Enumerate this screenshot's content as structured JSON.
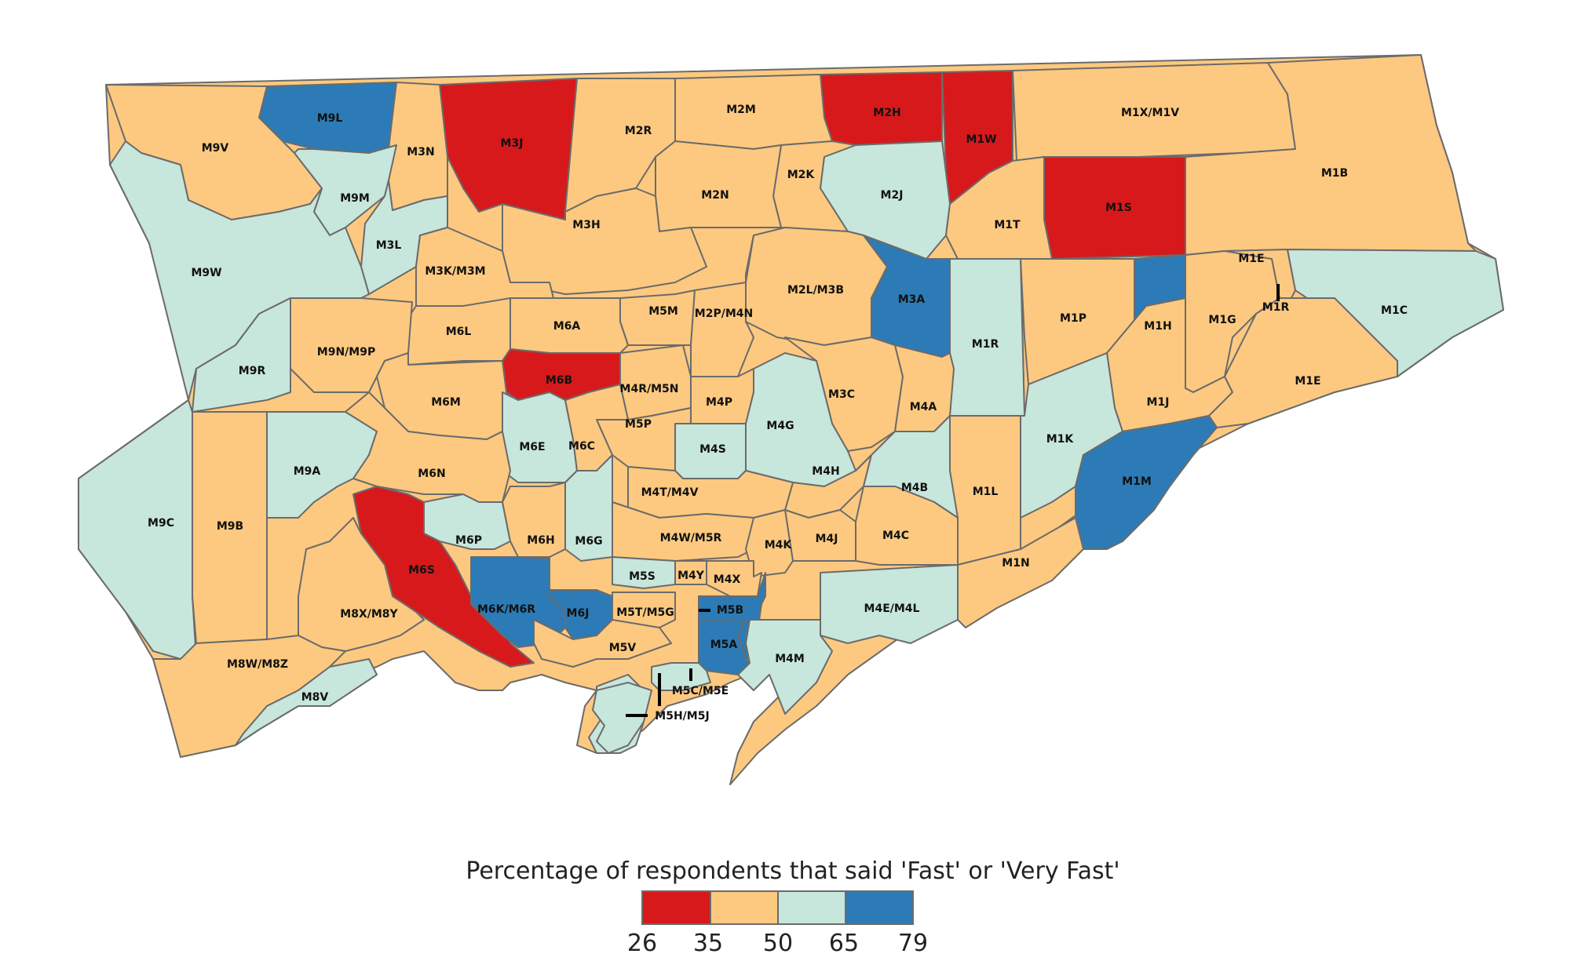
{
  "map": {
    "colors": {
      "class_1": "#d7191c",
      "class_2": "#fdc980",
      "class_3": "#c7e6dc",
      "class_4": "#2c7bb6",
      "border": "#6b6b6b",
      "water": "#ffffff"
    },
    "regions": [
      {
        "label": "M9L",
        "class": 4
      },
      {
        "label": "M3J",
        "class": 1
      },
      {
        "label": "M2H",
        "class": 1
      },
      {
        "label": "M1W",
        "class": 1
      },
      {
        "label": "M1X/M1V",
        "class": 2
      },
      {
        "label": "M9V",
        "class": 2
      },
      {
        "label": "M3N",
        "class": 2
      },
      {
        "label": "M2R",
        "class": 2
      },
      {
        "label": "M2M",
        "class": 2
      },
      {
        "label": "M1B",
        "class": 2
      },
      {
        "label": "M9M",
        "class": 3
      },
      {
        "label": "M2K",
        "class": 2
      },
      {
        "label": "M2N",
        "class": 2
      },
      {
        "label": "M2J",
        "class": 3
      },
      {
        "label": "M1S",
        "class": 1
      },
      {
        "label": "M3H",
        "class": 2
      },
      {
        "label": "M1T",
        "class": 2
      },
      {
        "label": "M3L",
        "class": 3
      },
      {
        "label": "M9W",
        "class": 3
      },
      {
        "label": "M3K/M3M",
        "class": 2
      },
      {
        "label": "M1E",
        "class": 2
      },
      {
        "label": "M2L/M3B",
        "class": 2
      },
      {
        "label": "M3A",
        "class": 4
      },
      {
        "label": "M1R",
        "class": 3
      },
      {
        "label": "M1C",
        "class": 3
      },
      {
        "label": "M5M",
        "class": 2
      },
      {
        "label": "M2P/M4N",
        "class": 2
      },
      {
        "label": "M6A",
        "class": 2
      },
      {
        "label": "M6L",
        "class": 2
      },
      {
        "label": "M1P",
        "class": 2
      },
      {
        "label": "M1H",
        "class": 4
      },
      {
        "label": "M1G",
        "class": 2
      },
      {
        "label": "M9N/M9P",
        "class": 2
      },
      {
        "label": "M1R",
        "class": 3
      },
      {
        "label": "M9R",
        "class": 3
      },
      {
        "label": "M6B",
        "class": 1
      },
      {
        "label": "M4R/M5N",
        "class": 2
      },
      {
        "label": "M3C",
        "class": 2
      },
      {
        "label": "M6M",
        "class": 2
      },
      {
        "label": "M4P",
        "class": 2
      },
      {
        "label": "M1J",
        "class": 2
      },
      {
        "label": "M4A",
        "class": 2
      },
      {
        "label": "M4G",
        "class": 3
      },
      {
        "label": "M1E",
        "class": 2
      },
      {
        "label": "M5P",
        "class": 2
      },
      {
        "label": "M6E",
        "class": 3
      },
      {
        "label": "M6C",
        "class": 2
      },
      {
        "label": "M4S",
        "class": 3
      },
      {
        "label": "M1K",
        "class": 3
      },
      {
        "label": "M9A",
        "class": 3
      },
      {
        "label": "M6N",
        "class": 2
      },
      {
        "label": "M1M",
        "class": 4
      },
      {
        "label": "M4H",
        "class": 2
      },
      {
        "label": "M4T/M4V",
        "class": 2
      },
      {
        "label": "M4B",
        "class": 3
      },
      {
        "label": "M1L",
        "class": 2
      },
      {
        "label": "M9C",
        "class": 3
      },
      {
        "label": "M9B",
        "class": 2
      },
      {
        "label": "M6P",
        "class": 3
      },
      {
        "label": "M6H",
        "class": 2
      },
      {
        "label": "M6G",
        "class": 3
      },
      {
        "label": "M4W/M5R",
        "class": 2
      },
      {
        "label": "M4J",
        "class": 2
      },
      {
        "label": "M4C",
        "class": 2
      },
      {
        "label": "M4K",
        "class": 2
      },
      {
        "label": "M1N",
        "class": 2
      },
      {
        "label": "M6S",
        "class": 1
      },
      {
        "label": "M5S",
        "class": 3
      },
      {
        "label": "M4Y",
        "class": 2
      },
      {
        "label": "M4X",
        "class": 2
      },
      {
        "label": "M6K/M6R",
        "class": 4
      },
      {
        "label": "M6J",
        "class": 4
      },
      {
        "label": "M5T/M5G",
        "class": 2
      },
      {
        "label": "M5B",
        "class": 4
      },
      {
        "label": "M8X/M8Y",
        "class": 2
      },
      {
        "label": "M4E/M4L",
        "class": 3
      },
      {
        "label": "M5A",
        "class": 4
      },
      {
        "label": "M5V",
        "class": 2
      },
      {
        "label": "M4M",
        "class": 3
      },
      {
        "label": "M8W/M8Z",
        "class": 2
      },
      {
        "label": "M5C/M5E",
        "class": 3
      },
      {
        "label": "M8V",
        "class": 3
      },
      {
        "label": "M5H/M5J",
        "class": 3
      }
    ]
  },
  "legend": {
    "title": "Percentage of respondents that said 'Fast' or 'Very Fast'",
    "breaks": [
      "26",
      "35",
      "50",
      "65",
      "79"
    ],
    "colors": [
      "#d7191c",
      "#fdc980",
      "#c7e6dc",
      "#2c7bb6"
    ]
  }
}
